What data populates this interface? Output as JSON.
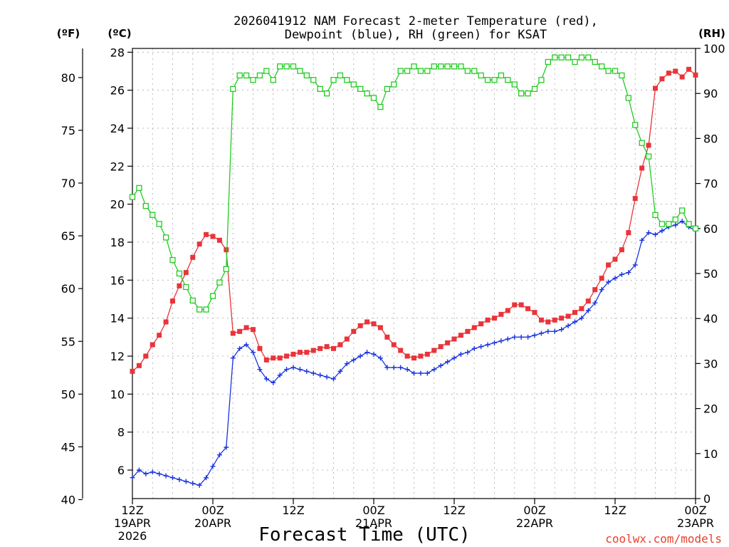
{
  "chart_data": {
    "type": "line",
    "title": [
      "2026041912 NAM Forecast 2-meter Temperature (red),",
      "Dewpoint (blue), RH (green) for KSAT"
    ],
    "xlabel": "Forecast Time (UTC)",
    "credit": "coolwx.com/models",
    "credit_color": "#e8402a",
    "x_range_hours": [
      0,
      84
    ],
    "x_ticks": [
      {
        "h": 0,
        "lines": [
          "12Z",
          "19APR",
          "2026"
        ]
      },
      {
        "h": 12,
        "lines": [
          "00Z",
          "20APR"
        ]
      },
      {
        "h": 24,
        "lines": [
          "12Z"
        ]
      },
      {
        "h": 36,
        "lines": [
          "00Z",
          "21APR"
        ]
      },
      {
        "h": 48,
        "lines": [
          "12Z"
        ]
      },
      {
        "h": 60,
        "lines": [
          "00Z",
          "22APR"
        ]
      },
      {
        "h": 72,
        "lines": [
          "12Z"
        ]
      },
      {
        "h": 84,
        "lines": [
          "00Z",
          "23APR"
        ]
      }
    ],
    "axes": {
      "fahrenheit": {
        "label": "(ºF)",
        "ticks": [
          "40",
          "45",
          "50",
          "55",
          "60",
          "65",
          "70",
          "75",
          "80"
        ]
      },
      "celsius": {
        "label": "(ºC)",
        "range": [
          4.5,
          28.2
        ],
        "ticks": [
          "6",
          "8",
          "10",
          "12",
          "14",
          "16",
          "18",
          "20",
          "22",
          "24",
          "26",
          "28"
        ]
      },
      "rh": {
        "label": "(RH)",
        "range": [
          0,
          100
        ],
        "ticks": [
          "0",
          "10",
          "20",
          "30",
          "40",
          "50",
          "60",
          "70",
          "80",
          "90",
          "100"
        ]
      }
    },
    "series": [
      {
        "name": "2-meter Temperature",
        "unit": "C",
        "color": "#e8343a",
        "marker": "filled-square",
        "points": [
          [
            0,
            11.2
          ],
          [
            1,
            11.5
          ],
          [
            2,
            12
          ],
          [
            3,
            12.6
          ],
          [
            4,
            13.1
          ],
          [
            5,
            13.8
          ],
          [
            6,
            14.9
          ],
          [
            7,
            15.7
          ],
          [
            8,
            16.4
          ],
          [
            9,
            17.2
          ],
          [
            10,
            17.9
          ],
          [
            11,
            18.4
          ],
          [
            12,
            18.3
          ],
          [
            13,
            18.1
          ],
          [
            14,
            17.6
          ],
          [
            15,
            13.2
          ],
          [
            16,
            13.3
          ],
          [
            17,
            13.5
          ],
          [
            18,
            13.4
          ],
          [
            19,
            12.4
          ],
          [
            20,
            11.8
          ],
          [
            21,
            11.9
          ],
          [
            22,
            11.9
          ],
          [
            23,
            12
          ],
          [
            24,
            12.1
          ],
          [
            25,
            12.2
          ],
          [
            26,
            12.2
          ],
          [
            27,
            12.3
          ],
          [
            28,
            12.4
          ],
          [
            29,
            12.5
          ],
          [
            30,
            12.4
          ],
          [
            31,
            12.6
          ],
          [
            32,
            12.9
          ],
          [
            33,
            13.3
          ],
          [
            34,
            13.6
          ],
          [
            35,
            13.8
          ],
          [
            36,
            13.7
          ],
          [
            37,
            13.5
          ],
          [
            38,
            13
          ],
          [
            39,
            12.6
          ],
          [
            40,
            12.3
          ],
          [
            41,
            12
          ],
          [
            42,
            11.9
          ],
          [
            43,
            12
          ],
          [
            44,
            12.1
          ],
          [
            45,
            12.3
          ],
          [
            46,
            12.5
          ],
          [
            47,
            12.7
          ],
          [
            48,
            12.9
          ],
          [
            49,
            13.1
          ],
          [
            50,
            13.3
          ],
          [
            51,
            13.5
          ],
          [
            52,
            13.7
          ],
          [
            53,
            13.9
          ],
          [
            54,
            14
          ],
          [
            55,
            14.2
          ],
          [
            56,
            14.4
          ],
          [
            57,
            14.7
          ],
          [
            58,
            14.7
          ],
          [
            59,
            14.5
          ],
          [
            60,
            14.3
          ],
          [
            61,
            13.9
          ],
          [
            62,
            13.8
          ],
          [
            63,
            13.9
          ],
          [
            64,
            14
          ],
          [
            65,
            14.1
          ],
          [
            66,
            14.3
          ],
          [
            67,
            14.5
          ],
          [
            68,
            14.9
          ],
          [
            69,
            15.5
          ],
          [
            70,
            16.1
          ],
          [
            71,
            16.8
          ],
          [
            72,
            17.1
          ],
          [
            73,
            17.6
          ],
          [
            74,
            18.5
          ],
          [
            75,
            20.3
          ],
          [
            76,
            21.9
          ],
          [
            77,
            23.1
          ],
          [
            78,
            26.1
          ],
          [
            79,
            26.6
          ],
          [
            80,
            26.9
          ],
          [
            81,
            27
          ],
          [
            82,
            26.7
          ],
          [
            83,
            27.1
          ],
          [
            84,
            26.8
          ]
        ]
      },
      {
        "name": "Dewpoint",
        "unit": "C",
        "color": "#1a34e0",
        "marker": "plus",
        "points": [
          [
            0,
            5.6
          ],
          [
            1,
            6
          ],
          [
            2,
            5.8
          ],
          [
            3,
            5.9
          ],
          [
            4,
            5.8
          ],
          [
            5,
            5.7
          ],
          [
            6,
            5.6
          ],
          [
            7,
            5.5
          ],
          [
            8,
            5.4
          ],
          [
            9,
            5.3
          ],
          [
            10,
            5.2
          ],
          [
            11,
            5.6
          ],
          [
            12,
            6.2
          ],
          [
            13,
            6.8
          ],
          [
            14,
            7.2
          ],
          [
            15,
            11.9
          ],
          [
            16,
            12.4
          ],
          [
            17,
            12.6
          ],
          [
            18,
            12.2
          ],
          [
            19,
            11.3
          ],
          [
            20,
            10.8
          ],
          [
            21,
            10.6
          ],
          [
            22,
            11
          ],
          [
            23,
            11.3
          ],
          [
            24,
            11.4
          ],
          [
            25,
            11.3
          ],
          [
            26,
            11.2
          ],
          [
            27,
            11.1
          ],
          [
            28,
            11
          ],
          [
            29,
            10.9
          ],
          [
            30,
            10.8
          ],
          [
            31,
            11.2
          ],
          [
            32,
            11.6
          ],
          [
            33,
            11.8
          ],
          [
            34,
            12
          ],
          [
            35,
            12.2
          ],
          [
            36,
            12.1
          ],
          [
            37,
            11.9
          ],
          [
            38,
            11.4
          ],
          [
            39,
            11.4
          ],
          [
            40,
            11.4
          ],
          [
            41,
            11.3
          ],
          [
            42,
            11.1
          ],
          [
            43,
            11.1
          ],
          [
            44,
            11.1
          ],
          [
            45,
            11.3
          ],
          [
            46,
            11.5
          ],
          [
            47,
            11.7
          ],
          [
            48,
            11.9
          ],
          [
            49,
            12.1
          ],
          [
            50,
            12.2
          ],
          [
            51,
            12.4
          ],
          [
            52,
            12.5
          ],
          [
            53,
            12.6
          ],
          [
            54,
            12.7
          ],
          [
            55,
            12.8
          ],
          [
            56,
            12.9
          ],
          [
            57,
            13
          ],
          [
            58,
            13
          ],
          [
            59,
            13
          ],
          [
            60,
            13.1
          ],
          [
            61,
            13.2
          ],
          [
            62,
            13.3
          ],
          [
            63,
            13.3
          ],
          [
            64,
            13.4
          ],
          [
            65,
            13.6
          ],
          [
            66,
            13.8
          ],
          [
            67,
            14
          ],
          [
            68,
            14.4
          ],
          [
            69,
            14.8
          ],
          [
            70,
            15.5
          ],
          [
            71,
            15.9
          ],
          [
            72,
            16.1
          ],
          [
            73,
            16.3
          ],
          [
            74,
            16.4
          ],
          [
            75,
            16.8
          ],
          [
            76,
            18.1
          ],
          [
            77,
            18.5
          ],
          [
            78,
            18.4
          ],
          [
            79,
            18.6
          ],
          [
            80,
            18.8
          ],
          [
            81,
            18.9
          ],
          [
            82,
            19.1
          ],
          [
            83,
            18.8
          ],
          [
            84,
            18.6
          ]
        ]
      },
      {
        "name": "Relative Humidity",
        "unit": "%",
        "color": "#22cc22",
        "marker": "open-square",
        "points": [
          [
            0,
            67
          ],
          [
            1,
            69
          ],
          [
            2,
            65
          ],
          [
            3,
            63
          ],
          [
            4,
            61
          ],
          [
            5,
            58
          ],
          [
            6,
            53
          ],
          [
            7,
            50
          ],
          [
            8,
            47
          ],
          [
            9,
            44
          ],
          [
            10,
            42
          ],
          [
            11,
            42
          ],
          [
            12,
            45
          ],
          [
            13,
            48
          ],
          [
            14,
            51
          ],
          [
            15,
            91
          ],
          [
            16,
            94
          ],
          [
            17,
            94
          ],
          [
            18,
            93
          ],
          [
            19,
            94
          ],
          [
            20,
            95
          ],
          [
            21,
            93
          ],
          [
            22,
            96
          ],
          [
            23,
            96
          ],
          [
            24,
            96
          ],
          [
            25,
            95
          ],
          [
            26,
            94
          ],
          [
            27,
            93
          ],
          [
            28,
            91
          ],
          [
            29,
            90
          ],
          [
            30,
            93
          ],
          [
            31,
            94
          ],
          [
            32,
            93
          ],
          [
            33,
            92
          ],
          [
            34,
            91
          ],
          [
            35,
            90
          ],
          [
            36,
            89
          ],
          [
            37,
            87
          ],
          [
            38,
            91
          ],
          [
            39,
            92
          ],
          [
            40,
            95
          ],
          [
            41,
            95
          ],
          [
            42,
            96
          ],
          [
            43,
            95
          ],
          [
            44,
            95
          ],
          [
            45,
            96
          ],
          [
            46,
            96
          ],
          [
            47,
            96
          ],
          [
            48,
            96
          ],
          [
            49,
            96
          ],
          [
            50,
            95
          ],
          [
            51,
            95
          ],
          [
            52,
            94
          ],
          [
            53,
            93
          ],
          [
            54,
            93
          ],
          [
            55,
            94
          ],
          [
            56,
            93
          ],
          [
            57,
            92
          ],
          [
            58,
            90
          ],
          [
            59,
            90
          ],
          [
            60,
            91
          ],
          [
            61,
            93
          ],
          [
            62,
            97
          ],
          [
            63,
            98
          ],
          [
            64,
            98
          ],
          [
            65,
            98
          ],
          [
            66,
            97
          ],
          [
            67,
            98
          ],
          [
            68,
            98
          ],
          [
            69,
            97
          ],
          [
            70,
            96
          ],
          [
            71,
            95
          ],
          [
            72,
            95
          ],
          [
            73,
            94
          ],
          [
            74,
            89
          ],
          [
            75,
            83
          ],
          [
            76,
            79
          ],
          [
            77,
            76
          ],
          [
            78,
            63
          ],
          [
            79,
            61
          ],
          [
            80,
            61
          ],
          [
            81,
            62
          ],
          [
            82,
            64
          ],
          [
            83,
            61
          ],
          [
            84,
            60
          ]
        ]
      }
    ]
  }
}
